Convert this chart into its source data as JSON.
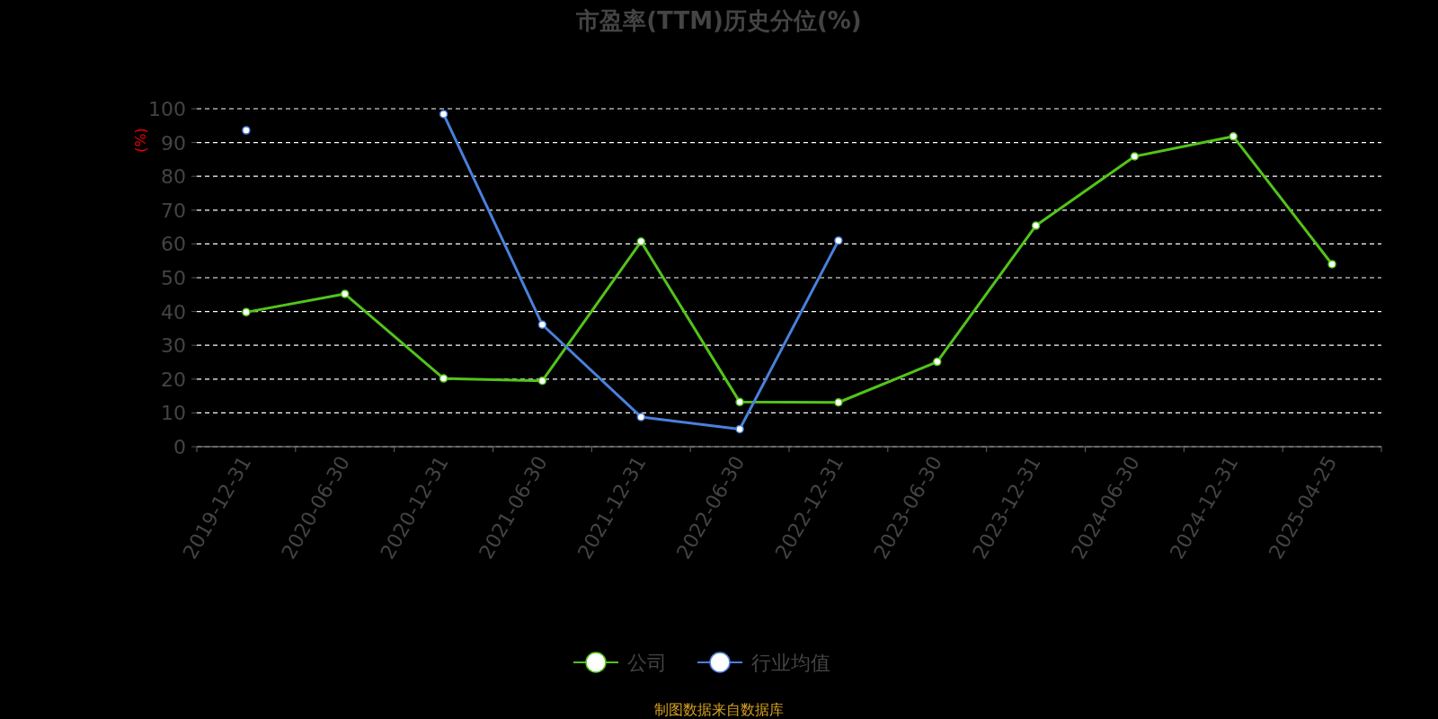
{
  "chart_data": {
    "type": "line",
    "title": "市盈率(TTM)历史分位(%)",
    "ylabel": "(%)",
    "categories": [
      "2019-12-31",
      "2020-06-30",
      "2020-12-31",
      "2021-06-30",
      "2021-12-31",
      "2022-06-30",
      "2022-12-31",
      "2023-06-30",
      "2023-12-31",
      "2024-06-30",
      "2024-12-31",
      "2025-04-25"
    ],
    "series": [
      {
        "name": "公司",
        "color": "#52c41a",
        "values": [
          39.8,
          45.2,
          20.2,
          19.5,
          60.7,
          13.2,
          13.1,
          25.1,
          65.4,
          85.9,
          91.8,
          54.0
        ]
      },
      {
        "name": "行业均值",
        "color": "#4a80dc",
        "values": [
          93.6,
          null,
          98.4,
          36.1,
          8.8,
          5.2,
          61.0,
          null,
          null,
          null,
          null,
          null
        ]
      }
    ],
    "ylim": [
      0,
      100
    ],
    "yticks": [
      0,
      10,
      20,
      30,
      40,
      50,
      60,
      70,
      80,
      90,
      100
    ],
    "grid": "y",
    "legend": "bottom",
    "marker": "circle",
    "line_style": "solid",
    "annotations": [
      "制图数据来自数据库"
    ]
  }
}
